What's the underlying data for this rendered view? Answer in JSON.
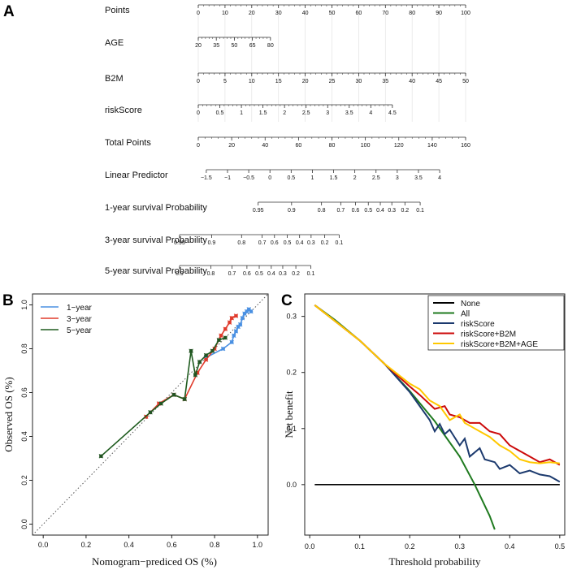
{
  "panels": {
    "A": "A",
    "B": "B",
    "C": "C"
  },
  "chart_data": [
    {
      "id": "A",
      "type": "nomogram",
      "rows": [
        {
          "label": "Points",
          "min": 0,
          "max": 100,
          "span": [
            0,
            100
          ],
          "ticks": [
            0,
            10,
            20,
            30,
            40,
            50,
            60,
            70,
            80,
            90,
            100
          ],
          "tick_labels": [
            "0",
            "10",
            "20",
            "30",
            "40",
            "50",
            "60",
            "70",
            "80",
            "90",
            "100"
          ]
        },
        {
          "label": "AGE",
          "min": 20,
          "max": 80,
          "span": [
            0,
            27
          ],
          "ticks": [
            20,
            35,
            50,
            65,
            80
          ],
          "tick_labels": [
            "20",
            "35",
            "50",
            "65",
            "80"
          ]
        },
        {
          "label": "B2M",
          "min": 0,
          "max": 50,
          "span": [
            0,
            100
          ],
          "ticks": [
            0,
            5,
            10,
            15,
            20,
            25,
            30,
            35,
            40,
            45,
            50
          ],
          "tick_labels": [
            "0",
            "5",
            "10",
            "15",
            "20",
            "25",
            "30",
            "35",
            "40",
            "45",
            "50"
          ]
        },
        {
          "label": "riskScore",
          "min": 0,
          "max": 4.5,
          "span": [
            0,
            72.6
          ],
          "ticks": [
            0,
            0.5,
            1,
            1.5,
            2,
            2.5,
            3,
            3.5,
            4,
            4.5
          ],
          "tick_labels": [
            "0",
            "0.5",
            "1",
            "1.5",
            "2",
            "2.5",
            "3",
            "3.5",
            "4",
            "4.5"
          ]
        },
        {
          "label": "Total Points",
          "min": 0,
          "max": 160,
          "span": [
            0,
            100
          ],
          "ticks": [
            0,
            20,
            40,
            60,
            80,
            100,
            120,
            140,
            160
          ],
          "tick_labels": [
            "0",
            "20",
            "40",
            "60",
            "80",
            "100",
            "120",
            "140",
            "160"
          ]
        },
        {
          "label": "Linear Predictor",
          "min": -1.5,
          "max": 4,
          "span": [
            3.0,
            90.3
          ],
          "ticks": [
            -1.5,
            -1,
            -0.5,
            0,
            0.5,
            1,
            1.5,
            2,
            2.5,
            3,
            3.5,
            4
          ],
          "tick_labels": [
            "−1.5",
            "−1",
            "−0.5",
            "0",
            "0.5",
            "1",
            "1.5",
            "2",
            "2.5",
            "3",
            "3.5",
            "4"
          ]
        },
        {
          "label": "1-year survival Probability",
          "scale": "prob",
          "ticks": [
            0.95,
            0.9,
            0.8,
            0.7,
            0.6,
            0.5,
            0.4,
            0.3,
            0.2,
            0.1
          ],
          "tick_labels": [
            "0.95",
            "0.9",
            "0.8",
            "0.7",
            "0.6",
            "0.5",
            "0.4",
            "0.3",
            "0.2",
            "0.1"
          ],
          "pos": [
            22.4,
            34.9,
            46.1,
            53.3,
            58.8,
            63.6,
            68.1,
            72.4,
            77.3,
            83.0
          ]
        },
        {
          "label": "3-year survival Probability",
          "scale": "prob",
          "ticks": [
            0.95,
            0.9,
            0.8,
            0.7,
            0.6,
            0.5,
            0.4,
            0.3,
            0.2,
            0.1
          ],
          "tick_labels": [
            "0.95",
            "0.9",
            "0.8",
            "0.7",
            "0.6",
            "0.5",
            "0.4",
            "0.3",
            "0.2",
            "0.1"
          ],
          "pos": [
            -7.0,
            5.0,
            16.2,
            23.9,
            28.5,
            33.3,
            37.9,
            42.2,
            47.3,
            52.7
          ]
        },
        {
          "label": "5-year survival Probability",
          "scale": "prob",
          "ticks": [
            0.9,
            0.8,
            0.7,
            0.6,
            0.5,
            0.4,
            0.3,
            0.2,
            0.1
          ],
          "tick_labels": [
            "0.9",
            "0.8",
            "0.7",
            "0.6",
            "0.5",
            "0.4",
            "0.3",
            "0.2",
            "0.1"
          ],
          "pos": [
            -7.0,
            4.7,
            12.6,
            18.2,
            22.8,
            27.3,
            31.6,
            36.5,
            42.1
          ]
        }
      ]
    },
    {
      "id": "B",
      "type": "line",
      "title": "",
      "xlabel": "Nomogram−prediced OS (%)",
      "ylabel": "Observed OS (%)",
      "xlim": [
        -0.05,
        1.05
      ],
      "ylim": [
        -0.05,
        1.05
      ],
      "xticks": [
        0.0,
        0.2,
        0.4,
        0.6,
        0.8,
        1.0
      ],
      "xtick_labels": [
        "0.0",
        "0.2",
        "0.4",
        "0.6",
        "0.8",
        "1.0"
      ],
      "yticks": [
        0.0,
        0.2,
        0.4,
        0.6,
        0.8,
        1.0
      ],
      "ytick_labels": [
        "0.0",
        "0.2",
        "0.4",
        "0.6",
        "0.8",
        "1.0"
      ],
      "reference_line": "y = x (dotted)",
      "legend": "top-left",
      "series": [
        {
          "name": "1−year",
          "color": "#4a90e2",
          "x": [
            0.76,
            0.84,
            0.88,
            0.89,
            0.9,
            0.91,
            0.92,
            0.93,
            0.94,
            0.95,
            0.96,
            0.97
          ],
          "y": [
            0.76,
            0.8,
            0.83,
            0.86,
            0.88,
            0.9,
            0.91,
            0.94,
            0.96,
            0.97,
            0.98,
            0.97
          ]
        },
        {
          "name": "3−year",
          "color": "#e03b2c",
          "x": [
            0.48,
            0.54,
            0.61,
            0.66,
            0.72,
            0.76,
            0.8,
            0.83,
            0.85,
            0.87,
            0.88,
            0.9
          ],
          "y": [
            0.49,
            0.55,
            0.59,
            0.57,
            0.69,
            0.75,
            0.8,
            0.86,
            0.89,
            0.92,
            0.94,
            0.95
          ]
        },
        {
          "name": "5−year",
          "color": "#1e5b1e",
          "x": [
            0.27,
            0.5,
            0.55,
            0.61,
            0.66,
            0.69,
            0.71,
            0.73,
            0.76,
            0.79,
            0.82,
            0.85
          ],
          "y": [
            0.31,
            0.51,
            0.55,
            0.59,
            0.57,
            0.79,
            0.68,
            0.74,
            0.77,
            0.79,
            0.84,
            0.85
          ]
        }
      ]
    },
    {
      "id": "C",
      "type": "line",
      "title": "",
      "xlabel": "Threshold probability",
      "ylabel": "Net benefit",
      "xlim": [
        -0.01,
        0.51
      ],
      "ylim": [
        -0.09,
        0.34
      ],
      "xticks": [
        0.0,
        0.1,
        0.2,
        0.3,
        0.4,
        0.5
      ],
      "xtick_labels": [
        "0.0",
        "0.1",
        "0.2",
        "0.3",
        "0.4",
        "0.5"
      ],
      "yticks": [
        0.0,
        0.1,
        0.2,
        0.3
      ],
      "ytick_labels": [
        "0.0",
        "0.1",
        "0.2",
        "0.3"
      ],
      "legend": "top-right",
      "series": [
        {
          "name": "None",
          "color": "#000000",
          "x": [
            0.01,
            0.5
          ],
          "y": [
            0.0,
            0.0
          ]
        },
        {
          "name": "All",
          "color": "#1f7a1f",
          "x": [
            0.01,
            0.05,
            0.1,
            0.15,
            0.2,
            0.25,
            0.3,
            0.33,
            0.36,
            0.37
          ],
          "y": [
            0.32,
            0.294,
            0.257,
            0.215,
            0.167,
            0.113,
            0.05,
            0.0,
            -0.056,
            -0.08
          ]
        },
        {
          "name": "riskScore",
          "color": "#1c3a6e",
          "x": [
            0.01,
            0.1,
            0.15,
            0.2,
            0.22,
            0.24,
            0.25,
            0.26,
            0.27,
            0.28,
            0.3,
            0.31,
            0.32,
            0.34,
            0.35,
            0.37,
            0.38,
            0.4,
            0.42,
            0.44,
            0.46,
            0.48,
            0.5
          ],
          "y": [
            0.32,
            0.257,
            0.215,
            0.165,
            0.14,
            0.115,
            0.095,
            0.108,
            0.09,
            0.098,
            0.07,
            0.082,
            0.05,
            0.065,
            0.045,
            0.04,
            0.028,
            0.035,
            0.02,
            0.025,
            0.018,
            0.015,
            0.005
          ]
        },
        {
          "name": "riskScore+B2M",
          "color": "#cc0a0a",
          "x": [
            0.01,
            0.1,
            0.15,
            0.2,
            0.22,
            0.25,
            0.27,
            0.28,
            0.3,
            0.32,
            0.34,
            0.36,
            0.38,
            0.4,
            0.42,
            0.44,
            0.46,
            0.48,
            0.5
          ],
          "y": [
            0.32,
            0.257,
            0.215,
            0.175,
            0.16,
            0.135,
            0.14,
            0.125,
            0.12,
            0.11,
            0.11,
            0.095,
            0.09,
            0.07,
            0.06,
            0.05,
            0.04,
            0.045,
            0.035
          ]
        },
        {
          "name": "riskScore+B2M+AGE",
          "color": "#ffc800",
          "x": [
            0.01,
            0.1,
            0.15,
            0.2,
            0.22,
            0.24,
            0.26,
            0.28,
            0.3,
            0.31,
            0.32,
            0.34,
            0.36,
            0.38,
            0.4,
            0.42,
            0.44,
            0.46,
            0.48,
            0.5
          ],
          "y": [
            0.32,
            0.257,
            0.215,
            0.18,
            0.17,
            0.15,
            0.14,
            0.115,
            0.125,
            0.11,
            0.105,
            0.095,
            0.085,
            0.07,
            0.06,
            0.045,
            0.04,
            0.038,
            0.04,
            0.038
          ]
        }
      ]
    }
  ]
}
